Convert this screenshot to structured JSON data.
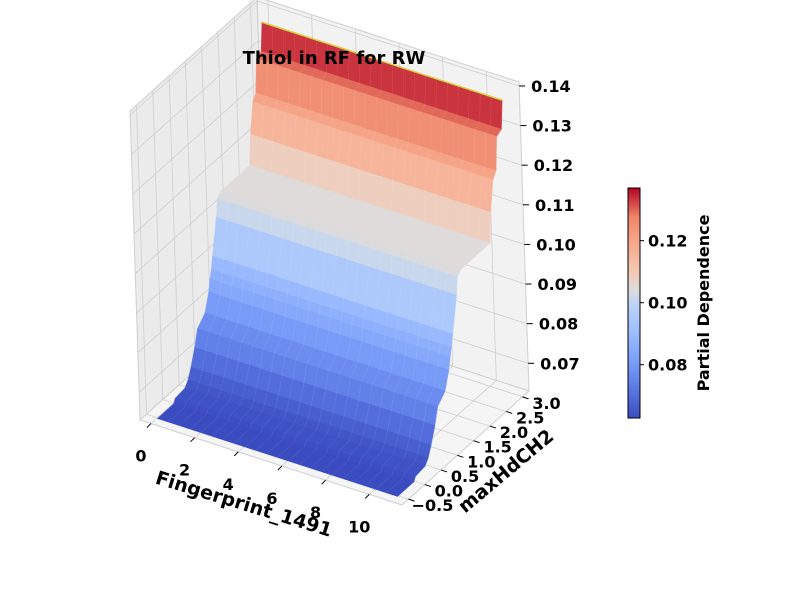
{
  "chart_data": {
    "type": "surface3d",
    "title": "Thiol in RF for RW",
    "xlabel": "Fingerprint_1491",
    "ylabel": "maxHdCH2",
    "zlabel": "",
    "colorbar_label": "Partial Dependence",
    "colormap": "coolwarm",
    "colors": {
      "low": "#3b4cc0",
      "mid": "#dddcdc",
      "high": "#b40426",
      "pane": "#f2f2f2",
      "grid": "#cfcfcf",
      "edge": "#d8d040"
    },
    "x_ticks": [
      "0",
      "2",
      "4",
      "6",
      "8",
      "10"
    ],
    "y_ticks": [
      "−0.5",
      "0.0",
      "0.5",
      "1.0",
      "1.5",
      "2.0",
      "2.5",
      "3.0"
    ],
    "z_ticks": [
      "0.07",
      "0.08",
      "0.09",
      "0.10",
      "0.11",
      "0.12",
      "0.13",
      "0.14"
    ],
    "colorbar_ticks": [
      "0.08",
      "0.10",
      "0.12"
    ],
    "xlim": [
      -0.5,
      11.5
    ],
    "ylim": [
      -0.7,
      3.2
    ],
    "zlim": [
      0.063,
      0.141
    ],
    "grid": true,
    "surface_profile": {
      "note_axis": "value of maxHdCH2 -> partial dependence (constant along Fingerprint_1491)",
      "y": [
        -0.5,
        0.0,
        0.05,
        0.35,
        0.45,
        0.55,
        0.68,
        0.78,
        1.02,
        1.15,
        1.2,
        1.25,
        1.3,
        1.45,
        1.5,
        1.6,
        2.5,
        2.55,
        2.65,
        2.75,
        2.8,
        2.95,
        3.0
      ],
      "pd": [
        0.0628,
        0.0628,
        0.0638,
        0.0642,
        0.0655,
        0.068,
        0.072,
        0.076,
        0.0782,
        0.0825,
        0.0855,
        0.0875,
        0.0905,
        0.0992,
        0.1035,
        0.1046,
        0.1046,
        0.112,
        0.1195,
        0.121,
        0.1293,
        0.13,
        0.137
      ]
    }
  }
}
